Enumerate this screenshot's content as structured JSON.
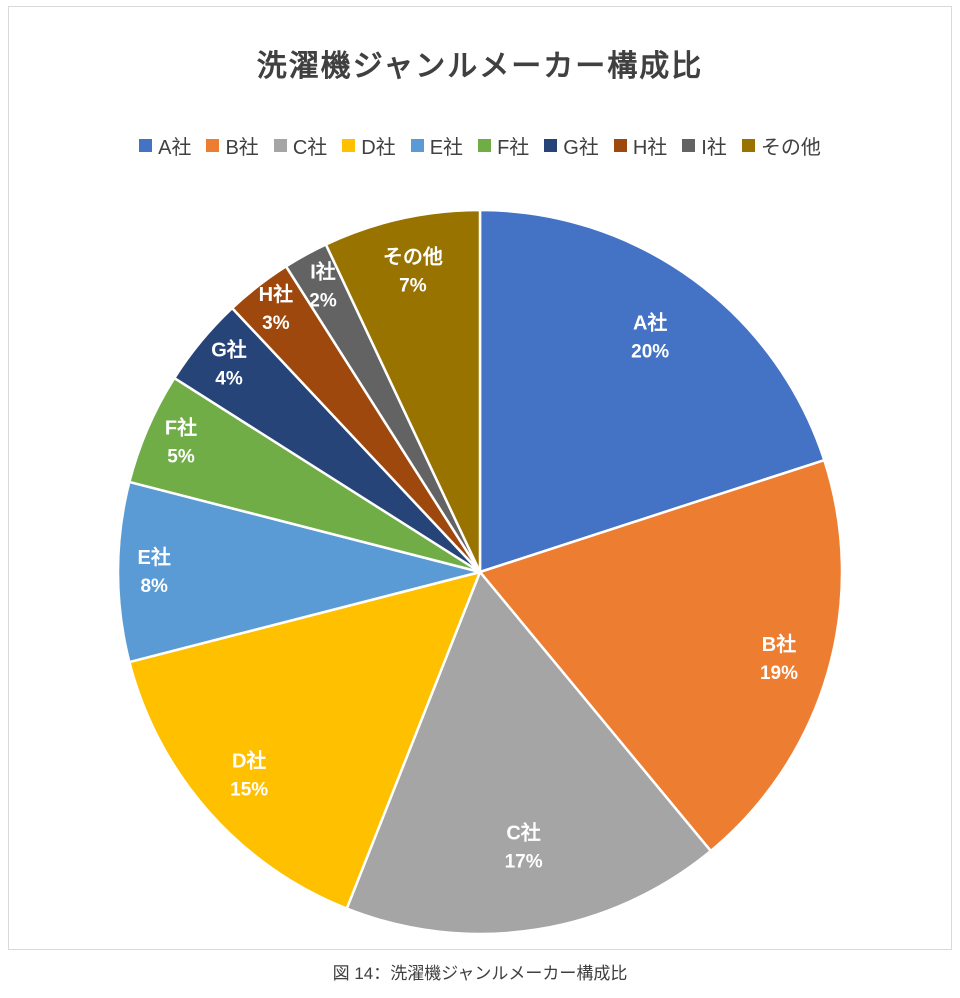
{
  "chart": {
    "title": "洗濯機ジャンルメーカー構成比",
    "caption": "図 14：洗濯機ジャンルメーカー構成比"
  },
  "chart_data": {
    "type": "pie",
    "title": "洗濯機ジャンルメーカー構成比",
    "legend_position": "top",
    "start_angle_deg": 0,
    "direction": "clockwise",
    "label_style": "white bold, category name + percent inside slice",
    "slices": [
      {
        "label": "A社",
        "value": 20,
        "display": "20%",
        "color": "#4472C4"
      },
      {
        "label": "B社",
        "value": 19,
        "display": "19%",
        "color": "#ED7D31"
      },
      {
        "label": "C社",
        "value": 17,
        "display": "17%",
        "color": "#A5A5A5"
      },
      {
        "label": "D社",
        "value": 15,
        "display": "15%",
        "color": "#FFC000"
      },
      {
        "label": "E社",
        "value": 8,
        "display": "8%",
        "color": "#5B9BD5"
      },
      {
        "label": "F社",
        "value": 5,
        "display": "5%",
        "color": "#70AD47"
      },
      {
        "label": "G社",
        "value": 4,
        "display": "4%",
        "color": "#264478"
      },
      {
        "label": "H社",
        "value": 3,
        "display": "3%",
        "color": "#9E480E"
      },
      {
        "label": "I社",
        "value": 2,
        "display": "2%",
        "color": "#636363"
      },
      {
        "label": "その他",
        "value": 7,
        "display": "7%",
        "color": "#997300"
      }
    ]
  }
}
